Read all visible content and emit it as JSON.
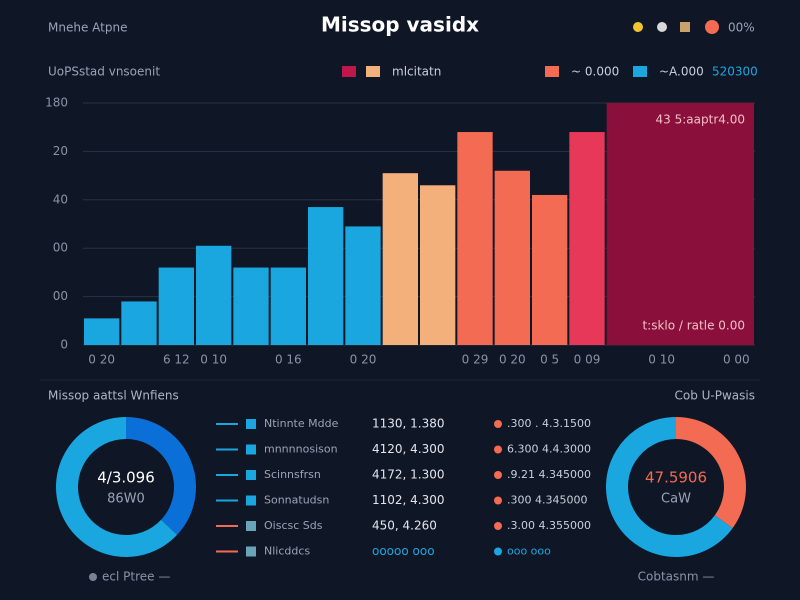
{
  "header": {
    "brand": "Mnehe Atpne",
    "title": "Missop vasidx",
    "status": "00%"
  },
  "chart_data": [
    {
      "type": "bar",
      "subtitle": "UoPSstad vnsoenit",
      "legend": [
        {
          "name": "mlcitatn",
          "colors": [
            "#c0174a",
            "#f4b07a"
          ]
        },
        {
          "name": "~ 0.000",
          "colors": [
            "#f26b52"
          ]
        },
        {
          "name": "~A.000",
          "colors": [
            "#1aa7e0"
          ]
        }
      ],
      "legend_note": "520300",
      "categories": [
        "0 20",
        null,
        "6 12",
        "0 10",
        null,
        "0 16",
        null,
        "0 20",
        null,
        null,
        "0 29",
        "0 20",
        "0 5",
        "0 09",
        null,
        "0 10",
        null,
        "0 00"
      ],
      "values": [
        11,
        18,
        32,
        41,
        32,
        32,
        57,
        49,
        71,
        66,
        88,
        72,
        62,
        88,
        100,
        100,
        100,
        100
      ],
      "colors": [
        "#1aa7e0",
        "#1aa7e0",
        "#1aa7e0",
        "#1aa7e0",
        "#1aa7e0",
        "#1aa7e0",
        "#1aa7e0",
        "#1aa7e0",
        "#f4b07a",
        "#f4b07a",
        "#f26b52",
        "#f26b52",
        "#f26b52",
        "#e8385a",
        "#8a0f3a",
        "#8a0f3a",
        "#8a0f3a",
        "#8a0f3a"
      ],
      "ylim": [
        0,
        100
      ],
      "yticks": [
        0,
        {
          "value": 20,
          "label": "00"
        },
        {
          "value": 40,
          "label": "00"
        },
        {
          "value": 60,
          "label": "40"
        },
        {
          "value": 80,
          "label": "20"
        },
        {
          "value": 100,
          "label": "180"
        }
      ],
      "grid": true,
      "annotations": [
        "43 5:aaptr4.00",
        "t:sklo  / ratle 0.00"
      ]
    },
    {
      "type": "pie",
      "title": "Missop aattsl Wnfiens",
      "values": [
        37,
        63
      ],
      "colors": [
        "#0b6fd8",
        "#1aa7e0"
      ],
      "center": [
        "4/3.096",
        "86W0"
      ],
      "caption": "ecl Ptree —"
    },
    {
      "type": "pie",
      "title": "Cob U-Pwasis",
      "values": [
        35,
        65
      ],
      "colors": [
        "#f26b52",
        "#1aa7e0"
      ],
      "center": [
        "47.5906",
        "CaW"
      ],
      "caption": "Cobtasnm —"
    }
  ],
  "table": {
    "rows": [
      [
        "Ntinnte Mdde",
        "1130, 1.380",
        ".300 . 4.3.1500"
      ],
      [
        "mnnnnosison",
        "4120, 4.300",
        "6.300 4.4.3000"
      ],
      [
        "Scinnsfrsn",
        "4172, 1.300",
        ".9.21 4.345000"
      ],
      [
        "Sonnatudsn",
        "1102, 4.300",
        ".300 4.345000"
      ],
      [
        "Oiscsc Sds",
        "450, 4.260",
        ".3.00 4.355000"
      ],
      [
        "Nlicddcs",
        "ooooo ooo",
        "ooo ooo"
      ]
    ]
  }
}
